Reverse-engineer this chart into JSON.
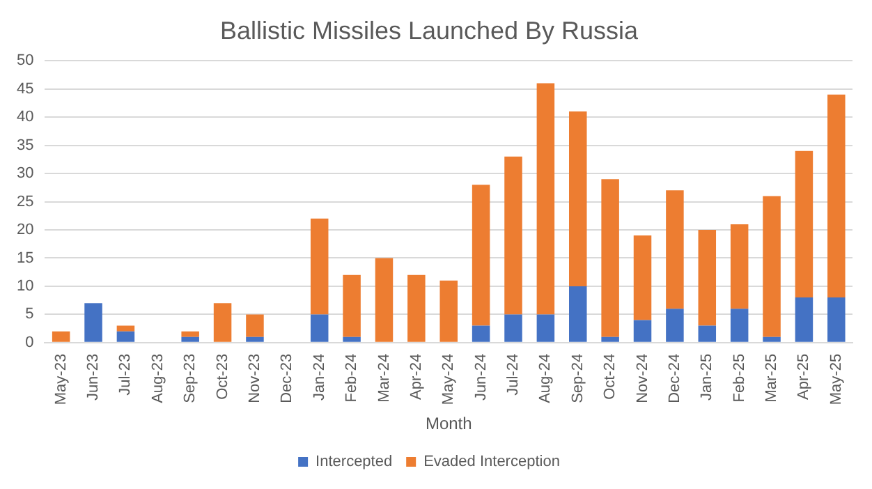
{
  "chart_data": {
    "type": "bar",
    "title": "Ballistic Missiles Launched By Russia",
    "xlabel": "Month",
    "categories": [
      "May-23",
      "Jun-23",
      "Jul-23",
      "Aug-23",
      "Sep-23",
      "Oct-23",
      "Nov-23",
      "Dec-23",
      "Jan-24",
      "Feb-24",
      "Mar-24",
      "Apr-24",
      "May-24",
      "Jun-24",
      "Jul-24",
      "Aug-24",
      "Sep-24",
      "Oct-24",
      "Nov-24",
      "Dec-24",
      "Jan-25",
      "Feb-25",
      "Mar-25",
      "Apr-25",
      "May-25"
    ],
    "series": [
      {
        "name": "Intercepted",
        "color": "#4472c4",
        "values": [
          0,
          7,
          2,
          0,
          1,
          0,
          1,
          0,
          5,
          1,
          0,
          0,
          0,
          3,
          5,
          5,
          10,
          1,
          4,
          6,
          3,
          6,
          1,
          8,
          8
        ]
      },
      {
        "name": "Evaded Interception",
        "color": "#ed7d31",
        "values": [
          2,
          0,
          1,
          0,
          1,
          7,
          4,
          0,
          17,
          11,
          15,
          12,
          11,
          25,
          28,
          41,
          31,
          28,
          15,
          21,
          17,
          15,
          25,
          26,
          36
        ]
      }
    ],
    "stacked": true,
    "ylim": [
      0,
      50
    ],
    "yticks": [
      0,
      5,
      10,
      15,
      20,
      25,
      30,
      35,
      40,
      45,
      50
    ],
    "grid": "y",
    "legend": "bottom"
  }
}
